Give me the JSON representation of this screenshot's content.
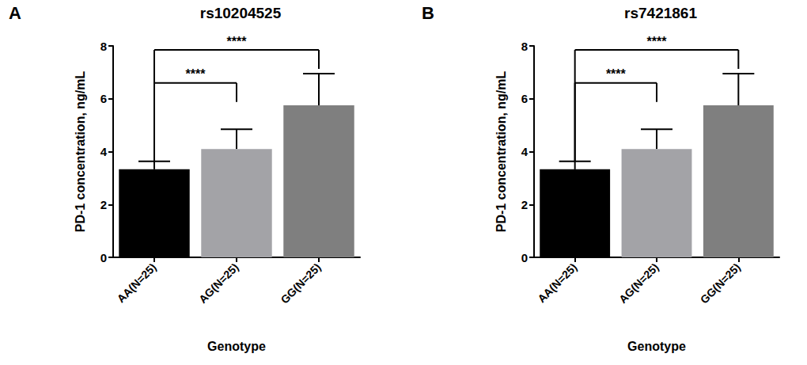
{
  "chart_data": [
    {
      "type": "bar",
      "subtitle": "A",
      "title": "rs10204525",
      "x_label": "Genotype",
      "y_label": "PD-1 concentration, ng/mL",
      "categories": [
        "AA(N=25)",
        "AG(N=25)",
        "GG(N=25)"
      ],
      "values": [
        3.33,
        4.1,
        5.75
      ],
      "errors": [
        0.3,
        0.75,
        1.2
      ],
      "colors": [
        "#000000",
        "#a3a3a7",
        "#7f7f7f"
      ],
      "ylim": [
        0,
        8
      ],
      "yticks": [
        0,
        2,
        4,
        6,
        8
      ],
      "grid": false,
      "annotations": [
        {
          "text": "****",
          "from": "AA(N=25)",
          "to": "AG(N=25)",
          "y": 6.6
        },
        {
          "text": "****",
          "from": "AA(N=25)",
          "to": "GG(N=25)",
          "y": 7.85
        }
      ]
    },
    {
      "type": "bar",
      "subtitle": "B",
      "title": "rs7421861",
      "x_label": "Genotype",
      "y_label": "PD-1 concentration, ng/mL",
      "categories": [
        "AA(N=25)",
        "AG(N=25)",
        "GG(N=25)"
      ],
      "values": [
        3.33,
        4.1,
        5.75
      ],
      "errors": [
        0.3,
        0.75,
        1.2
      ],
      "colors": [
        "#000000",
        "#a3a3a7",
        "#7f7f7f"
      ],
      "ylim": [
        0,
        8
      ],
      "yticks": [
        0,
        2,
        4,
        6,
        8
      ],
      "grid": false,
      "annotations": [
        {
          "text": "****",
          "from": "AA(N=25)",
          "to": "AG(N=25)",
          "y": 6.6
        },
        {
          "text": "****",
          "from": "AA(N=25)",
          "to": "GG(N=25)",
          "y": 7.85
        }
      ]
    }
  ]
}
